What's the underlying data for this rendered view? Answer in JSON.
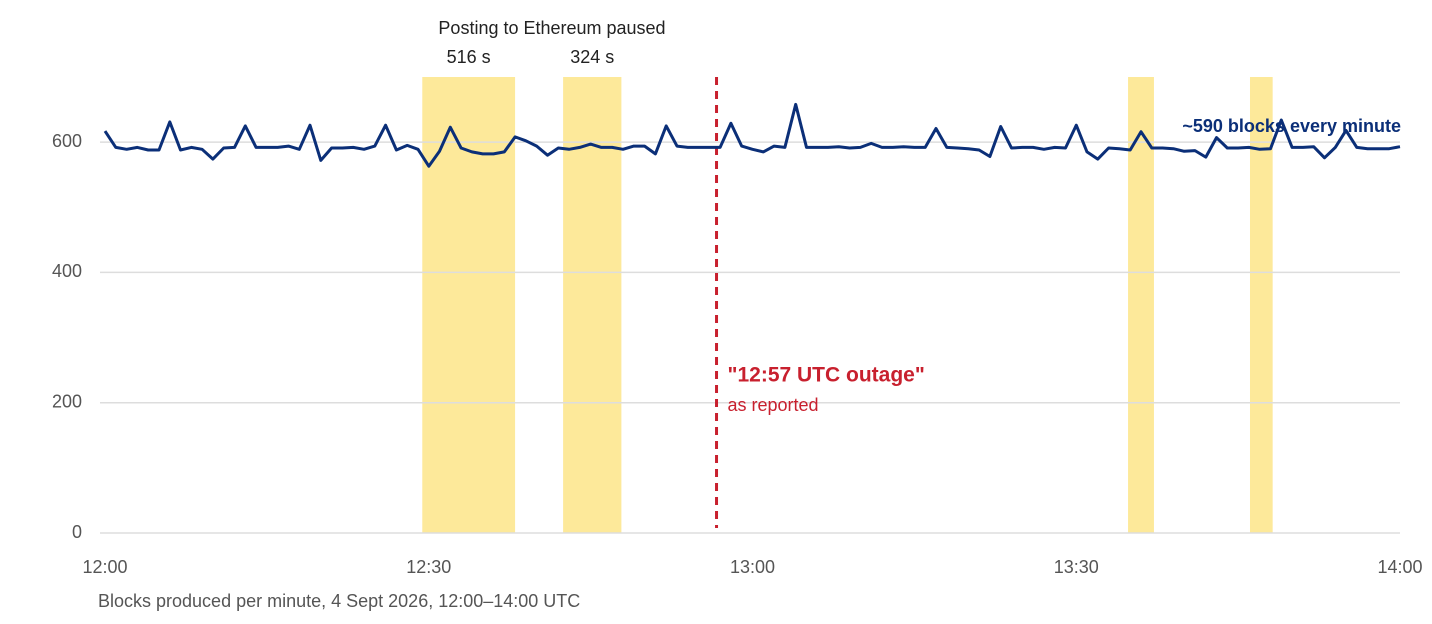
{
  "chart_data": {
    "type": "line",
    "x": [
      "12:00",
      "12:01",
      "12:02",
      "12:03",
      "12:04",
      "12:05",
      "12:06",
      "12:07",
      "12:08",
      "12:09",
      "12:10",
      "12:11",
      "12:12",
      "12:13",
      "12:14",
      "12:15",
      "12:16",
      "12:17",
      "12:18",
      "12:19",
      "12:20",
      "12:21",
      "12:22",
      "12:23",
      "12:24",
      "12:25",
      "12:26",
      "12:27",
      "12:28",
      "12:29",
      "12:30",
      "12:31",
      "12:32",
      "12:33",
      "12:34",
      "12:35",
      "12:36",
      "12:37",
      "12:38",
      "12:39",
      "12:40",
      "12:41",
      "12:42",
      "12:43",
      "12:44",
      "12:45",
      "12:46",
      "12:47",
      "12:48",
      "12:49",
      "12:50",
      "12:51",
      "12:52",
      "12:53",
      "12:54",
      "12:55",
      "12:56",
      "12:57",
      "12:58",
      "12:59",
      "13:00",
      "13:01",
      "13:02",
      "13:03",
      "13:04",
      "13:05",
      "13:06",
      "13:07",
      "13:08",
      "13:09",
      "13:10",
      "13:11",
      "13:12",
      "13:13",
      "13:14",
      "13:15",
      "13:16",
      "13:17",
      "13:18",
      "13:19",
      "13:20",
      "13:21",
      "13:22",
      "13:23",
      "13:24",
      "13:25",
      "13:26",
      "13:27",
      "13:28",
      "13:29",
      "13:30",
      "13:31",
      "13:32",
      "13:33",
      "13:34",
      "13:35",
      "13:36",
      "13:37",
      "13:38",
      "13:39",
      "13:40",
      "13:41",
      "13:42",
      "13:43",
      "13:44",
      "13:45",
      "13:46",
      "13:47",
      "13:48",
      "13:49",
      "13:50",
      "13:51",
      "13:52",
      "13:53",
      "13:54",
      "13:55",
      "13:56",
      "13:57",
      "13:58",
      "13:59",
      "14:00"
    ],
    "values": [
      617,
      592,
      589,
      592,
      588,
      588,
      631,
      588,
      592,
      589,
      574,
      591,
      592,
      625,
      592,
      592,
      592,
      594,
      589,
      626,
      572,
      591,
      591,
      592,
      589,
      594,
      626,
      588,
      595,
      589,
      563,
      586,
      623,
      591,
      585,
      582,
      582,
      585,
      608,
      602,
      594,
      580,
      591,
      589,
      592,
      597,
      592,
      592,
      589,
      594,
      594,
      582,
      625,
      594,
      592,
      592,
      592,
      592,
      629,
      594,
      589,
      585,
      594,
      592,
      658,
      592,
      592,
      592,
      593,
      591,
      592,
      598,
      592,
      592,
      593,
      592,
      592,
      621,
      592,
      591,
      590,
      588,
      578,
      624,
      591,
      592,
      592,
      589,
      592,
      591,
      626,
      585,
      574,
      591,
      590,
      588,
      616,
      591,
      591,
      590,
      586,
      587,
      577,
      607,
      591,
      591,
      592,
      589,
      590,
      634,
      592,
      592,
      593,
      576,
      592,
      618,
      592,
      590,
      590,
      590,
      593
    ],
    "color": "#0b2f78",
    "xlim": [
      "12:00",
      "14:00"
    ],
    "xticks": [
      "12:00",
      "12:30",
      "13:00",
      "13:30",
      "14:00"
    ],
    "ylim": [
      0,
      700
    ],
    "yticks": [
      0,
      200,
      400,
      600
    ],
    "grid": true,
    "shaded_periods_title": "Posting to Ethereum paused",
    "shaded_periods": [
      {
        "start": "12:29:24",
        "end": "12:38:00",
        "label": "516 s"
      },
      {
        "start": "12:42:27",
        "end": "12:47:51",
        "label": "324 s"
      },
      {
        "start": "13:34:48",
        "end": "13:37:12"
      },
      {
        "start": "13:46:06",
        "end": "13:48:12"
      }
    ],
    "shade_color": "#fde99a",
    "marker": {
      "x": "12:56:40",
      "label": "\"12:57 UTC outage\"",
      "sublabel": "as reported",
      "color": "#c8202e"
    },
    "line_label": "~590 blocks every minute",
    "caption": "Blocks produced per minute, 4 Sept 2026, 12:00–14:00 UTC"
  }
}
